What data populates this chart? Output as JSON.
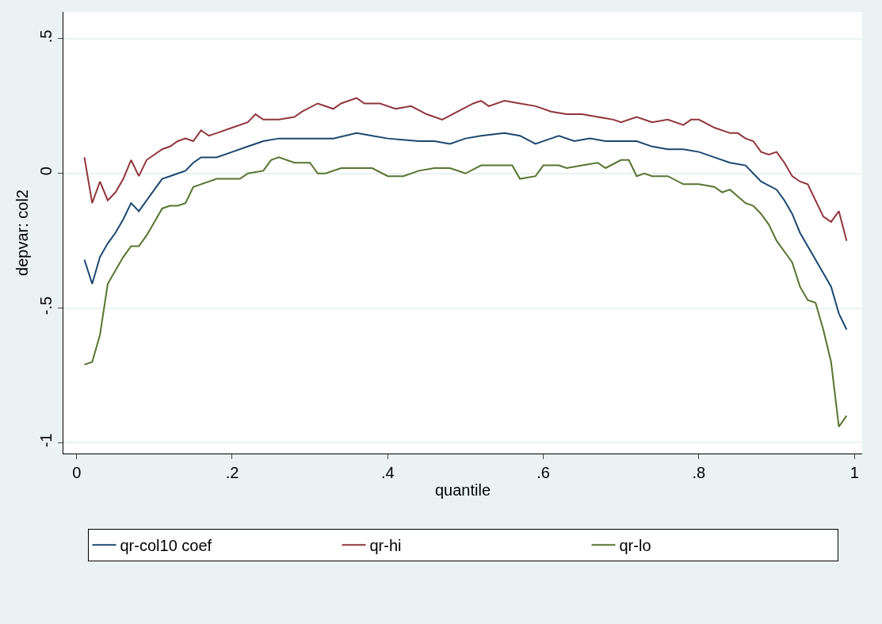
{
  "chart_data": {
    "type": "line",
    "xlabel": "quantile",
    "ylabel": "depvar: col2",
    "xlim": [
      -0.017,
      1.01
    ],
    "ylim": [
      -1.04,
      0.6
    ],
    "xticks": [
      0,
      {
        "value": 0.2,
        "label": ".2"
      },
      {
        "value": 0.4,
        "label": ".4"
      },
      {
        "value": 0.6,
        "label": ".6"
      },
      {
        "value": 0.8,
        "label": ".8"
      },
      1
    ],
    "yticks": [
      -1,
      {
        "value": -0.5,
        "label": "-.5"
      },
      0,
      {
        "value": 0.5,
        "label": ".5"
      }
    ],
    "grid": "y",
    "legend": "bottom",
    "marker": "none",
    "line_style": "solid",
    "series": [
      {
        "name": "qr-col10 coef",
        "color": "#1a476f",
        "x": [
          0.01,
          0.02,
          0.03,
          0.04,
          0.05,
          0.06,
          0.07,
          0.08,
          0.09,
          0.1,
          0.11,
          0.12,
          0.13,
          0.14,
          0.15,
          0.16,
          0.18,
          0.2,
          0.22,
          0.24,
          0.26,
          0.3,
          0.33,
          0.36,
          0.38,
          0.4,
          0.44,
          0.46,
          0.48,
          0.5,
          0.52,
          0.55,
          0.57,
          0.59,
          0.61,
          0.62,
          0.64,
          0.66,
          0.68,
          0.72,
          0.74,
          0.76,
          0.78,
          0.8,
          0.82,
          0.84,
          0.86,
          0.87,
          0.88,
          0.9,
          0.91,
          0.92,
          0.93,
          0.94,
          0.95,
          0.96,
          0.97,
          0.98,
          0.99
        ],
        "values": [
          -0.32,
          -0.41,
          -0.31,
          -0.26,
          -0.22,
          -0.17,
          -0.11,
          -0.14,
          -0.1,
          -0.06,
          -0.02,
          -0.01,
          0.0,
          0.01,
          0.04,
          0.06,
          0.06,
          0.08,
          0.1,
          0.12,
          0.13,
          0.13,
          0.13,
          0.15,
          0.14,
          0.13,
          0.12,
          0.12,
          0.11,
          0.13,
          0.14,
          0.15,
          0.14,
          0.11,
          0.13,
          0.14,
          0.12,
          0.13,
          0.12,
          0.12,
          0.1,
          0.09,
          0.09,
          0.08,
          0.06,
          0.04,
          0.03,
          0.0,
          -0.03,
          -0.06,
          -0.1,
          -0.15,
          -0.22,
          -0.27,
          -0.32,
          -0.37,
          -0.42,
          -0.52,
          -0.58
        ]
      },
      {
        "name": "qr-hi",
        "color": "#90353b",
        "x": [
          0.01,
          0.02,
          0.03,
          0.04,
          0.05,
          0.06,
          0.07,
          0.08,
          0.09,
          0.1,
          0.11,
          0.12,
          0.13,
          0.14,
          0.15,
          0.16,
          0.17,
          0.18,
          0.2,
          0.22,
          0.23,
          0.24,
          0.26,
          0.28,
          0.29,
          0.31,
          0.33,
          0.34,
          0.36,
          0.37,
          0.39,
          0.41,
          0.43,
          0.45,
          0.47,
          0.49,
          0.51,
          0.52,
          0.53,
          0.55,
          0.57,
          0.59,
          0.61,
          0.63,
          0.65,
          0.67,
          0.69,
          0.7,
          0.72,
          0.74,
          0.76,
          0.78,
          0.79,
          0.8,
          0.82,
          0.84,
          0.85,
          0.86,
          0.87,
          0.88,
          0.89,
          0.9,
          0.91,
          0.92,
          0.93,
          0.94,
          0.95,
          0.96,
          0.97,
          0.98,
          0.99
        ],
        "values": [
          0.06,
          -0.11,
          -0.03,
          -0.1,
          -0.07,
          -0.02,
          0.05,
          -0.01,
          0.05,
          0.07,
          0.09,
          0.1,
          0.12,
          0.13,
          0.12,
          0.16,
          0.14,
          0.15,
          0.17,
          0.19,
          0.22,
          0.2,
          0.2,
          0.21,
          0.23,
          0.26,
          0.24,
          0.26,
          0.28,
          0.26,
          0.26,
          0.24,
          0.25,
          0.22,
          0.2,
          0.23,
          0.26,
          0.27,
          0.25,
          0.27,
          0.26,
          0.25,
          0.23,
          0.22,
          0.22,
          0.21,
          0.2,
          0.19,
          0.21,
          0.19,
          0.2,
          0.18,
          0.2,
          0.2,
          0.17,
          0.15,
          0.15,
          0.13,
          0.12,
          0.08,
          0.07,
          0.08,
          0.04,
          -0.01,
          -0.03,
          -0.04,
          -0.1,
          -0.16,
          -0.18,
          -0.14,
          -0.25
        ]
      },
      {
        "name": "qr-lo",
        "color": "#55752f",
        "x": [
          0.01,
          0.02,
          0.03,
          0.04,
          0.05,
          0.06,
          0.07,
          0.08,
          0.09,
          0.1,
          0.11,
          0.12,
          0.13,
          0.14,
          0.15,
          0.16,
          0.18,
          0.21,
          0.22,
          0.24,
          0.25,
          0.26,
          0.28,
          0.3,
          0.31,
          0.32,
          0.34,
          0.36,
          0.38,
          0.4,
          0.42,
          0.44,
          0.46,
          0.48,
          0.5,
          0.52,
          0.55,
          0.56,
          0.57,
          0.59,
          0.6,
          0.62,
          0.63,
          0.65,
          0.67,
          0.68,
          0.7,
          0.71,
          0.72,
          0.73,
          0.74,
          0.76,
          0.78,
          0.8,
          0.82,
          0.83,
          0.84,
          0.86,
          0.87,
          0.88,
          0.89,
          0.9,
          0.91,
          0.92,
          0.93,
          0.94,
          0.95,
          0.96,
          0.97,
          0.98,
          0.99
        ],
        "values": [
          -0.71,
          -0.7,
          -0.6,
          -0.41,
          -0.36,
          -0.31,
          -0.27,
          -0.27,
          -0.23,
          -0.18,
          -0.13,
          -0.12,
          -0.12,
          -0.11,
          -0.05,
          -0.04,
          -0.02,
          -0.02,
          0.0,
          0.01,
          0.05,
          0.06,
          0.04,
          0.04,
          0.0,
          0.0,
          0.02,
          0.02,
          0.02,
          -0.01,
          -0.01,
          0.01,
          0.02,
          0.02,
          0.0,
          0.03,
          0.03,
          0.03,
          -0.02,
          -0.01,
          0.03,
          0.03,
          0.02,
          0.03,
          0.04,
          0.02,
          0.05,
          0.05,
          -0.01,
          0.0,
          -0.01,
          -0.01,
          -0.04,
          -0.04,
          -0.05,
          -0.07,
          -0.06,
          -0.11,
          -0.12,
          -0.15,
          -0.19,
          -0.25,
          -0.29,
          -0.33,
          -0.42,
          -0.47,
          -0.48,
          -0.58,
          -0.7,
          -0.94,
          -0.9
        ]
      }
    ]
  }
}
